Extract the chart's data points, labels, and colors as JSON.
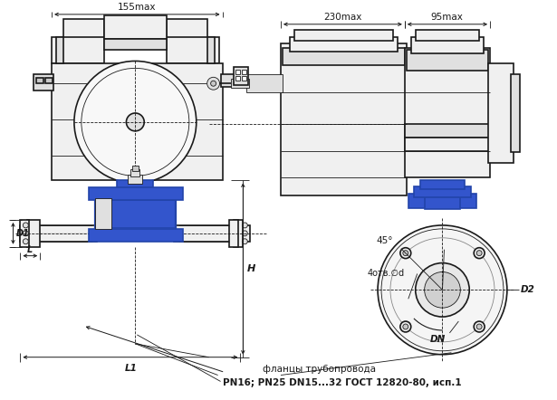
{
  "bg_color": "#ffffff",
  "line_color": "#1a1a1a",
  "blue_color": "#3355cc",
  "blue_dark": "#2244aa",
  "blue_fill": "#4466dd",
  "gray_light": "#f0f0f0",
  "gray_mid": "#e0e0e0",
  "gray_dark": "#c8c8c8",
  "text_flanges": "фланцы трубопровода",
  "text_pn": "PN16; PN25 DN15...32 ГОСТ 12820-80, исп.1",
  "text_155max": "155max",
  "text_230max": "230max",
  "text_95max": "95max",
  "text_H": "H",
  "text_D1": "D1",
  "text_D2": "D2",
  "text_DN": "DN",
  "text_L": "L",
  "text_L1": "L1",
  "text_4otv": "4отв.∅d",
  "text_45deg": "45°",
  "figsize": [
    6.15,
    4.42
  ],
  "dpi": 100
}
